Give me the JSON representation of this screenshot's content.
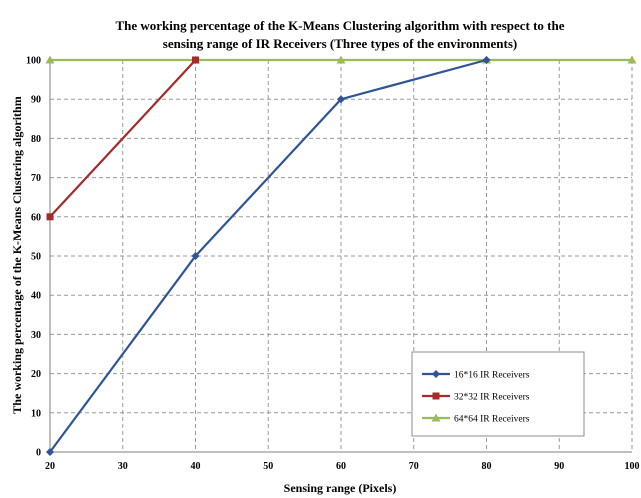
{
  "chart_data": {
    "type": "line",
    "title": "The working percentage of  the  K-Means Clustering algorithm with respect to the",
    "subtitle": "sensing range of IR Receivers (Three types of the environments)",
    "xlabel": "Sensing range (Pixels)",
    "ylabel": "The working percentage of the K-Means Clustering algorithm",
    "xlim": [
      20,
      100
    ],
    "ylim": [
      0,
      100
    ],
    "xticks": [
      20,
      30,
      40,
      50,
      60,
      70,
      80,
      90,
      100
    ],
    "yticks": [
      0,
      10,
      20,
      30,
      40,
      50,
      60,
      70,
      80,
      90,
      100
    ],
    "grid": true,
    "legend_position": "bottom-right",
    "series": [
      {
        "name": "16*16 IR Receivers",
        "color": "#2f5597",
        "marker": "diamond",
        "x": [
          20,
          40,
          60,
          80
        ],
        "y": [
          0,
          50,
          90,
          100
        ]
      },
      {
        "name": "32*32 IR Receivers",
        "color": "#a52a2a",
        "marker": "square",
        "x": [
          20,
          40
        ],
        "y": [
          60,
          100
        ]
      },
      {
        "name": "64*64 IR Receivers",
        "color": "#9bbb59",
        "marker": "triangle",
        "x": [
          20,
          40,
          60,
          80,
          100
        ],
        "y": [
          100,
          100,
          100,
          100,
          100
        ]
      }
    ]
  }
}
